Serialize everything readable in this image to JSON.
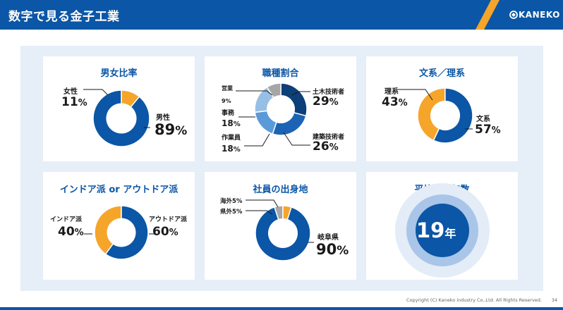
{
  "header": {
    "title": "数字で見る金子工業",
    "logo_text": "KANEKO"
  },
  "footer": {
    "copyright": "Copyright (C) Kaneko industry Co.,Ltd. All Rights Reserved.",
    "page": "34"
  },
  "colors": {
    "primary": "#0b56a6",
    "accent": "#f5a52a",
    "gray": "#a6a6a6",
    "panel": "#e6eef8"
  },
  "gender": {
    "title": "男女比率",
    "female_label": "女性",
    "female_value": "11",
    "unit": "%",
    "male_label": "男性",
    "male_value": "89"
  },
  "jobs": {
    "title": "職種割合",
    "sales_label": "営業",
    "sales_value": "9",
    "unit": "%",
    "office_label": "事務",
    "office_value": "18",
    "worker_label": "作業員",
    "worker_value": "18",
    "civil_label": "土木技術者",
    "civil_value": "29",
    "building_label": "建築技術者",
    "building_value": "26"
  },
  "major": {
    "title": "文系／理系",
    "science_label": "理系",
    "science_value": "43",
    "unit": "%",
    "humanities_label": "文系",
    "humanities_value": "57"
  },
  "preference": {
    "title": "インドア派 or アウトドア派",
    "indoor_label": "インドア派",
    "indoor_value": "40",
    "unit": "%",
    "outdoor_label": "アウトドア派",
    "outdoor_value": "60"
  },
  "origin": {
    "title": "社員の出身地",
    "overseas_label": "海外5%",
    "other_pref_label": "県外5%",
    "gifu_label": "岐阜県",
    "gifu_value": "90",
    "unit": "%"
  },
  "tenure": {
    "title": "平均勤続年数",
    "value": "19",
    "unit": "年"
  },
  "chart_data": [
    {
      "type": "pie",
      "title": "男女比率",
      "categories": [
        "女性",
        "男性"
      ],
      "values": [
        11,
        89
      ]
    },
    {
      "type": "pie",
      "title": "職種割合",
      "categories": [
        "営業",
        "土木技術者",
        "建築技術者",
        "作業員",
        "事務"
      ],
      "values": [
        9,
        29,
        26,
        18,
        18
      ]
    },
    {
      "type": "pie",
      "title": "文系／理系",
      "categories": [
        "理系",
        "文系"
      ],
      "values": [
        43,
        57
      ]
    },
    {
      "type": "pie",
      "title": "インドア派 or アウトドア派",
      "categories": [
        "インドア派",
        "アウトドア派"
      ],
      "values": [
        40,
        60
      ]
    },
    {
      "type": "pie",
      "title": "社員の出身地",
      "categories": [
        "海外",
        "県外",
        "岐阜県"
      ],
      "values": [
        5,
        5,
        90
      ]
    }
  ]
}
